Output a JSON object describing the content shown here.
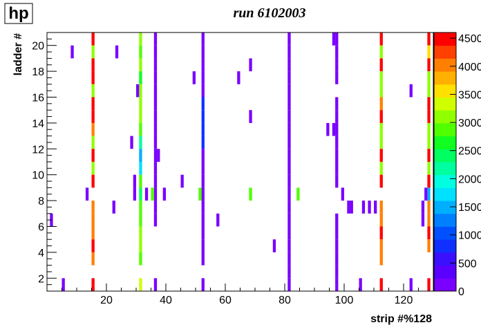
{
  "chart_data": {
    "type": "heatmap",
    "badge": "hp",
    "title": "run 6102003",
    "x_label": "strip #%128",
    "y_label": "ladder #",
    "xlim": [
      0,
      130
    ],
    "xticks": [
      20,
      40,
      60,
      80,
      100,
      120
    ],
    "ylim": [
      1,
      21
    ],
    "yticks": [
      2,
      4,
      6,
      8,
      10,
      12,
      14,
      16,
      18,
      20
    ],
    "zlim": [
      0,
      4600
    ],
    "zticks": [
      0,
      500,
      1000,
      1500,
      2000,
      2500,
      3000,
      3500,
      4000,
      4500
    ],
    "palette": [
      "#7a00ff",
      "#5a00ff",
      "#3a10ff",
      "#1030ff",
      "#0050ff",
      "#0080ff",
      "#00b0ff",
      "#00e0ff",
      "#00ffe0",
      "#00ffa0",
      "#00ff60",
      "#10ff20",
      "#50ff00",
      "#90ff00",
      "#d0ff00",
      "#ffe000",
      "#ffb000",
      "#ff8000",
      "#ff4000",
      "#ff0000"
    ],
    "cells": [
      [
        15,
        20,
        4500
      ],
      [
        15,
        19,
        3200
      ],
      [
        15,
        18,
        4500
      ],
      [
        15,
        17,
        4500
      ],
      [
        15,
        16,
        3000
      ],
      [
        15,
        15,
        4500
      ],
      [
        15,
        14,
        4500
      ],
      [
        15,
        13,
        4000
      ],
      [
        15,
        12,
        3200
      ],
      [
        15,
        11,
        4500
      ],
      [
        15,
        10,
        3000
      ],
      [
        15,
        9,
        4500
      ],
      [
        15,
        7,
        4000
      ],
      [
        15,
        6,
        4000
      ],
      [
        15,
        5,
        4000
      ],
      [
        15,
        4,
        4500
      ],
      [
        15,
        3,
        4000
      ],
      [
        15,
        1,
        4500
      ],
      [
        31,
        20,
        3200
      ],
      [
        31,
        19,
        2800
      ],
      [
        31,
        18,
        3200
      ],
      [
        31,
        17,
        2600
      ],
      [
        31,
        16,
        3200
      ],
      [
        31,
        15,
        3200
      ],
      [
        31,
        14,
        3200
      ],
      [
        31,
        13,
        2800
      ],
      [
        31,
        12,
        2200
      ],
      [
        31,
        11,
        1600
      ],
      [
        31,
        10,
        1700
      ],
      [
        31,
        9,
        2800
      ],
      [
        31,
        8,
        2400
      ],
      [
        31,
        7,
        2800
      ],
      [
        31,
        6,
        2800
      ],
      [
        31,
        5,
        3200
      ],
      [
        31,
        4,
        3200
      ],
      [
        31,
        3,
        2800
      ],
      [
        31,
        1,
        3300
      ],
      [
        36,
        20,
        200
      ],
      [
        36,
        19,
        200
      ],
      [
        36,
        18,
        200
      ],
      [
        36,
        17,
        200
      ],
      [
        36,
        16,
        200
      ],
      [
        36,
        15,
        200
      ],
      [
        36,
        14,
        200
      ],
      [
        36,
        13,
        200
      ],
      [
        36,
        12,
        200
      ],
      [
        36,
        11,
        200
      ],
      [
        36,
        10,
        200
      ],
      [
        36,
        9,
        200
      ],
      [
        36,
        8,
        200
      ],
      [
        36,
        7,
        200
      ],
      [
        36,
        6,
        200
      ],
      [
        36,
        1,
        200
      ],
      [
        52,
        20,
        200
      ],
      [
        52,
        19,
        200
      ],
      [
        52,
        18,
        200
      ],
      [
        52,
        17,
        200
      ],
      [
        52,
        16,
        200
      ],
      [
        52,
        15,
        700
      ],
      [
        52,
        14,
        700
      ],
      [
        52,
        13,
        700
      ],
      [
        52,
        12,
        700
      ],
      [
        52,
        11,
        200
      ],
      [
        52,
        10,
        200
      ],
      [
        52,
        9,
        200
      ],
      [
        52,
        8,
        200
      ],
      [
        52,
        7,
        200
      ],
      [
        52,
        6,
        200
      ],
      [
        52,
        5,
        200
      ],
      [
        52,
        4,
        200
      ],
      [
        52,
        3,
        200
      ],
      [
        52,
        1,
        200
      ],
      [
        81,
        20,
        200
      ],
      [
        81,
        19,
        200
      ],
      [
        81,
        18,
        200
      ],
      [
        81,
        17,
        200
      ],
      [
        81,
        16,
        200
      ],
      [
        81,
        15,
        200
      ],
      [
        81,
        14,
        200
      ],
      [
        81,
        13,
        200
      ],
      [
        81,
        12,
        200
      ],
      [
        81,
        11,
        200
      ],
      [
        81,
        10,
        200
      ],
      [
        81,
        9,
        200
      ],
      [
        81,
        8,
        200
      ],
      [
        81,
        7,
        200
      ],
      [
        81,
        6,
        200
      ],
      [
        81,
        5,
        200
      ],
      [
        81,
        4,
        200
      ],
      [
        81,
        3,
        200
      ],
      [
        81,
        2,
        200
      ],
      [
        81,
        1,
        200
      ],
      [
        97,
        20,
        200
      ],
      [
        97,
        19,
        200
      ],
      [
        97,
        18,
        200
      ],
      [
        97,
        17,
        200
      ],
      [
        97,
        15,
        200
      ],
      [
        97,
        14,
        200
      ],
      [
        97,
        13,
        200
      ],
      [
        97,
        12,
        200
      ],
      [
        97,
        11,
        200
      ],
      [
        97,
        10,
        200
      ],
      [
        97,
        9,
        200
      ],
      [
        97,
        6,
        200
      ],
      [
        97,
        5,
        200
      ],
      [
        97,
        4,
        200
      ],
      [
        97,
        3,
        200
      ],
      [
        97,
        2,
        200
      ],
      [
        97,
        1,
        200
      ],
      [
        112,
        20,
        4500
      ],
      [
        112,
        19,
        3200
      ],
      [
        112,
        18,
        4500
      ],
      [
        112,
        17,
        3000
      ],
      [
        112,
        16,
        3000
      ],
      [
        112,
        15,
        4000
      ],
      [
        112,
        14,
        4500
      ],
      [
        112,
        13,
        3000
      ],
      [
        112,
        12,
        3200
      ],
      [
        112,
        11,
        4500
      ],
      [
        112,
        10,
        3000
      ],
      [
        112,
        9,
        4500
      ],
      [
        112,
        7,
        4000
      ],
      [
        112,
        6,
        4000
      ],
      [
        112,
        5,
        4500
      ],
      [
        112,
        4,
        4000
      ],
      [
        112,
        3,
        4000
      ],
      [
        112,
        1,
        4500
      ],
      [
        128,
        20,
        4500
      ],
      [
        128,
        19,
        3500
      ],
      [
        128,
        18,
        4500
      ],
      [
        128,
        17,
        3000
      ],
      [
        128,
        16,
        3000
      ],
      [
        128,
        15,
        4500
      ],
      [
        128,
        14,
        4500
      ],
      [
        128,
        13,
        3000
      ],
      [
        128,
        12,
        3000
      ],
      [
        128,
        11,
        4500
      ],
      [
        128,
        10,
        3000
      ],
      [
        128,
        9,
        4500
      ],
      [
        128,
        8,
        1500
      ],
      [
        128,
        7,
        4000
      ],
      [
        128,
        6,
        4000
      ],
      [
        128,
        5,
        4500
      ],
      [
        128,
        4,
        4000
      ],
      [
        128,
        1,
        4500
      ],
      [
        1,
        6,
        200
      ],
      [
        5,
        1,
        200
      ],
      [
        8,
        19,
        200
      ],
      [
        13,
        8,
        200
      ],
      [
        22,
        7,
        200
      ],
      [
        23,
        19,
        200
      ],
      [
        28,
        12,
        200
      ],
      [
        29,
        9,
        200
      ],
      [
        29,
        8,
        200
      ],
      [
        30,
        16,
        200
      ],
      [
        33,
        8,
        200
      ],
      [
        37,
        11,
        200
      ],
      [
        39,
        8,
        200
      ],
      [
        45,
        9,
        200
      ],
      [
        49,
        17,
        200
      ],
      [
        57,
        6,
        200
      ],
      [
        64,
        17,
        200
      ],
      [
        68,
        18,
        200
      ],
      [
        68,
        14,
        200
      ],
      [
        76,
        4,
        200
      ],
      [
        94,
        13,
        200
      ],
      [
        96,
        13,
        200
      ],
      [
        96,
        20,
        200
      ],
      [
        99,
        8,
        200
      ],
      [
        101,
        7,
        200
      ],
      [
        102,
        7,
        200
      ],
      [
        105,
        1,
        200
      ],
      [
        106,
        7,
        200
      ],
      [
        108,
        7,
        200
      ],
      [
        110,
        7,
        200
      ],
      [
        122,
        16,
        200
      ],
      [
        122,
        1,
        200
      ],
      [
        126,
        7,
        200
      ],
      [
        126,
        6,
        200
      ],
      [
        127,
        8,
        200
      ],
      [
        35,
        8,
        2800
      ],
      [
        51,
        8,
        2800
      ],
      [
        68,
        8,
        2800
      ],
      [
        84,
        8,
        2800
      ]
    ]
  }
}
